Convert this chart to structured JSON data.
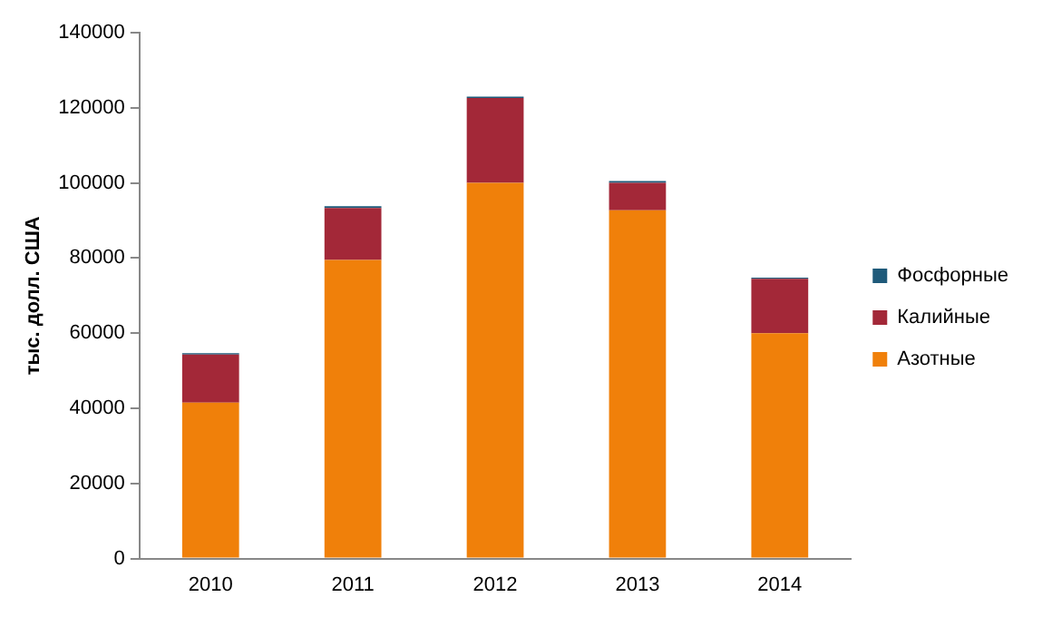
{
  "chart_data": {
    "type": "bar",
    "stacked": true,
    "ylabel": "тыс. долл. США",
    "categories": [
      "2010",
      "2011",
      "2012",
      "2013",
      "2014"
    ],
    "series": [
      {
        "name": "Азотные",
        "color": "#f0800a",
        "values": [
          41500,
          79500,
          100000,
          92700,
          60000
        ]
      },
      {
        "name": "Калийные",
        "color": "#a32838",
        "values": [
          12800,
          13800,
          22600,
          7300,
          14500
        ]
      },
      {
        "name": "Фосфорные",
        "color": "#1f5a7a",
        "values": [
          400,
          500,
          400,
          500,
          300
        ]
      }
    ],
    "ylim": [
      0,
      140000
    ],
    "yticks": [
      0,
      20000,
      40000,
      60000,
      80000,
      100000,
      120000,
      140000
    ],
    "grid": false,
    "legend": "right"
  }
}
